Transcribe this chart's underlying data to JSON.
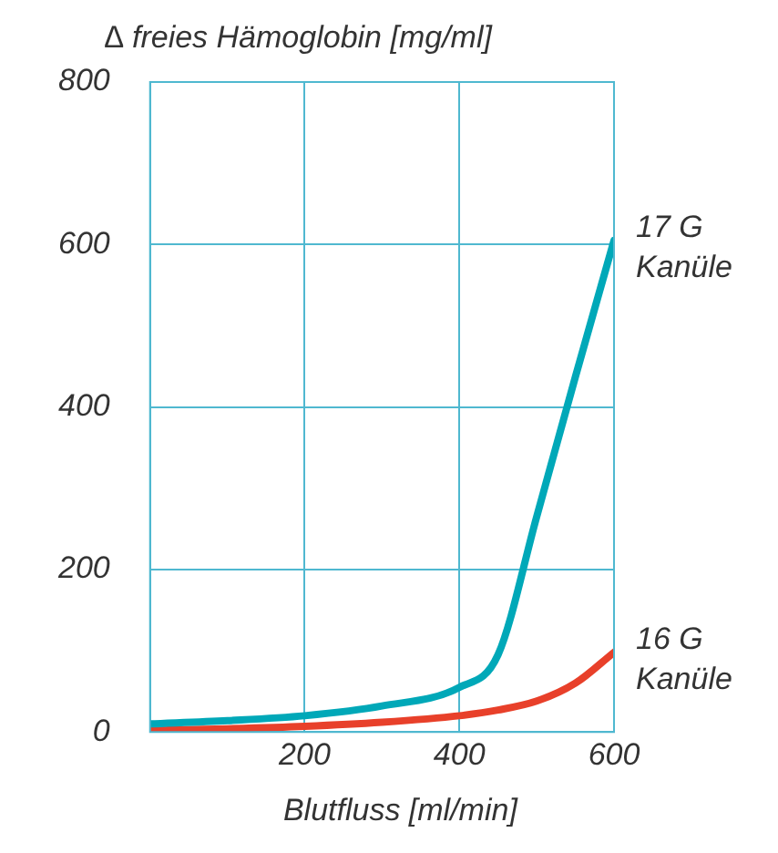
{
  "chart_data": {
    "type": "line",
    "ylabel": "∆ freies Hämoglobin [mg/ml]",
    "xlabel": "Blutfluss [ml/min]",
    "x": [
      0,
      100,
      200,
      300,
      400,
      450,
      500,
      550,
      600
    ],
    "series": [
      {
        "name": "17 G Kanüle",
        "color": "#00a8b8",
        "values": [
          10,
          14,
          20,
          32,
          55,
          95,
          265,
          437,
          605
        ]
      },
      {
        "name": "16 G Kanüle",
        "color": "#e8402a",
        "values": [
          2,
          4,
          7,
          12,
          20,
          27,
          38,
          60,
          98
        ]
      }
    ],
    "xlim": [
      0,
      600
    ],
    "xticks": [
      {
        "value": 0,
        "label": null
      },
      200,
      400,
      600
    ],
    "ylim": [
      0,
      800
    ],
    "yticks": [
      0,
      200,
      400,
      600,
      800
    ],
    "grid": true,
    "legend": false,
    "marker": "none",
    "line_style": "solid"
  }
}
